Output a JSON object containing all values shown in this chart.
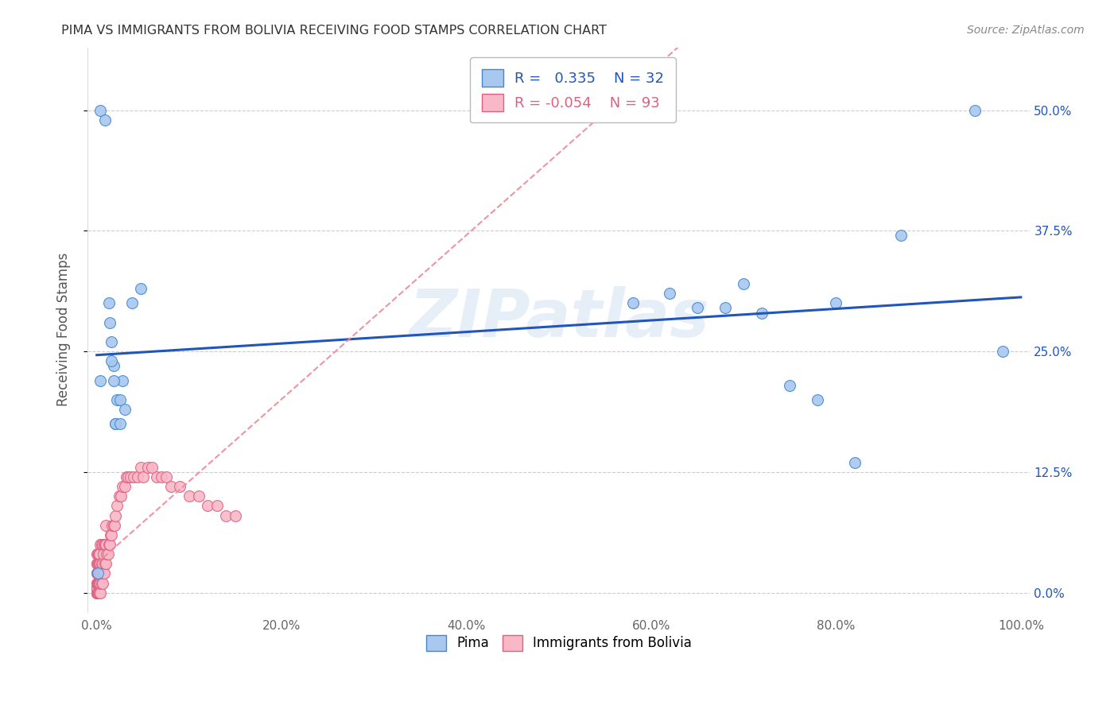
{
  "title": "PIMA VS IMMIGRANTS FROM BOLIVIA RECEIVING FOOD STAMPS CORRELATION CHART",
  "source": "Source: ZipAtlas.com",
  "ylabel": "Receiving Food Stamps",
  "legend_label1": "Pima",
  "legend_label2": "Immigrants from Bolivia",
  "r1": 0.335,
  "n1": 32,
  "r2": -0.054,
  "n2": 93,
  "color_pima_fill": "#a8c8f0",
  "color_pima_edge": "#4488cc",
  "color_bolivia_fill": "#f8b8c8",
  "color_bolivia_edge": "#e06080",
  "color_pima_line": "#2255bb",
  "color_bolivia_line": "#ee8899",
  "watermark": "ZIPatlas",
  "pima_x": [
    0.001,
    0.004,
    0.009,
    0.013,
    0.014,
    0.016,
    0.018,
    0.02,
    0.022,
    0.025,
    0.028,
    0.03,
    0.038,
    0.048,
    0.58,
    0.62,
    0.65,
    0.68,
    0.7,
    0.72,
    0.75,
    0.78,
    0.8,
    0.82,
    0.87,
    0.95,
    0.98,
    0.004,
    0.016,
    0.018,
    0.02,
    0.025
  ],
  "pima_y": [
    0.02,
    0.5,
    0.49,
    0.3,
    0.28,
    0.26,
    0.235,
    0.175,
    0.2,
    0.2,
    0.22,
    0.19,
    0.3,
    0.315,
    0.3,
    0.31,
    0.295,
    0.295,
    0.32,
    0.29,
    0.215,
    0.2,
    0.3,
    0.135,
    0.37,
    0.5,
    0.25,
    0.22,
    0.24,
    0.22,
    0.175,
    0.175
  ],
  "bolivia_x": [
    0.0,
    0.0,
    0.0,
    0.0,
    0.0,
    0.0,
    0.0,
    0.0,
    0.0,
    0.0,
    0.0,
    0.0,
    0.0,
    0.0,
    0.0,
    0.001,
    0.001,
    0.001,
    0.001,
    0.001,
    0.001,
    0.001,
    0.001,
    0.001,
    0.002,
    0.002,
    0.002,
    0.002,
    0.002,
    0.002,
    0.002,
    0.003,
    0.003,
    0.003,
    0.003,
    0.003,
    0.003,
    0.004,
    0.004,
    0.004,
    0.004,
    0.004,
    0.005,
    0.005,
    0.005,
    0.005,
    0.006,
    0.006,
    0.006,
    0.007,
    0.007,
    0.008,
    0.008,
    0.009,
    0.009,
    0.01,
    0.01,
    0.01,
    0.011,
    0.012,
    0.013,
    0.014,
    0.015,
    0.016,
    0.017,
    0.018,
    0.019,
    0.02,
    0.022,
    0.024,
    0.026,
    0.028,
    0.03,
    0.032,
    0.034,
    0.036,
    0.04,
    0.044,
    0.048,
    0.05,
    0.055,
    0.06,
    0.065,
    0.07,
    0.075,
    0.08,
    0.09,
    0.1,
    0.11,
    0.12,
    0.13,
    0.14,
    0.15
  ],
  "bolivia_y": [
    0.0,
    0.0,
    0.0,
    0.0,
    0.0,
    0.005,
    0.005,
    0.01,
    0.01,
    0.01,
    0.02,
    0.02,
    0.03,
    0.03,
    0.04,
    0.0,
    0.0,
    0.0,
    0.01,
    0.01,
    0.02,
    0.02,
    0.03,
    0.04,
    0.0,
    0.0,
    0.01,
    0.01,
    0.02,
    0.03,
    0.04,
    0.0,
    0.01,
    0.01,
    0.02,
    0.03,
    0.04,
    0.0,
    0.01,
    0.02,
    0.03,
    0.05,
    0.01,
    0.02,
    0.03,
    0.05,
    0.01,
    0.03,
    0.05,
    0.02,
    0.04,
    0.02,
    0.05,
    0.03,
    0.05,
    0.03,
    0.05,
    0.07,
    0.04,
    0.04,
    0.05,
    0.05,
    0.06,
    0.06,
    0.07,
    0.07,
    0.07,
    0.08,
    0.09,
    0.1,
    0.1,
    0.11,
    0.11,
    0.12,
    0.12,
    0.12,
    0.12,
    0.12,
    0.13,
    0.12,
    0.13,
    0.13,
    0.12,
    0.12,
    0.12,
    0.11,
    0.11,
    0.1,
    0.1,
    0.09,
    0.09,
    0.08,
    0.08
  ],
  "xlim": [
    -0.01,
    1.01
  ],
  "ylim": [
    -0.02,
    0.565
  ],
  "yticks": [
    0.0,
    0.125,
    0.25,
    0.375,
    0.5
  ],
  "ytick_labels": [
    "0.0%",
    "12.5%",
    "25.0%",
    "37.5%",
    "50.0%"
  ],
  "xticks": [
    0.0,
    0.2,
    0.4,
    0.6,
    0.8,
    1.0
  ],
  "xtick_labels": [
    "0.0%",
    "20.0%",
    "40.0%",
    "60.0%",
    "80.0%",
    "100.0%"
  ],
  "background_color": "#ffffff",
  "grid_color": "#cccccc",
  "pima_line_x0": 0.0,
  "pima_line_x1": 1.0,
  "bolivia_line_x0": 0.0,
  "bolivia_line_x1": 1.0
}
